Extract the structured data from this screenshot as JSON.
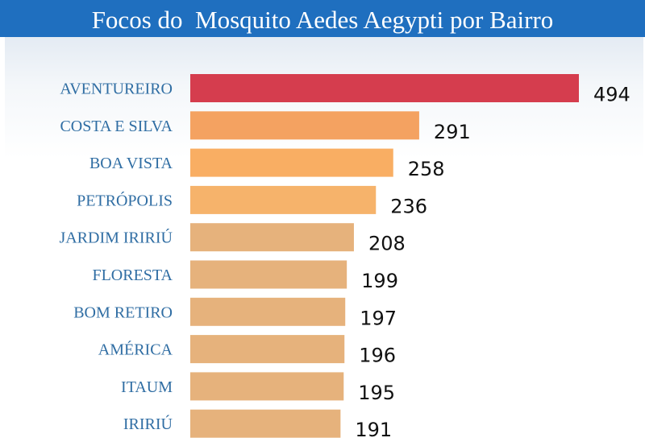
{
  "chart_data": {
    "type": "bar",
    "orientation": "horizontal",
    "title": "Focos do  Mosquito Aedes Aegypti por Bairro",
    "categories": [
      "AVENTUREIRO",
      "COSTA E SILVA",
      "BOA VISTA",
      "PETRÓPOLIS",
      "JARDIM IRIRIÚ",
      "FLORESTA",
      "BOM RETIRO",
      "AMÉRICA",
      "ITAUM",
      "IRIRIÚ"
    ],
    "values": [
      494,
      291,
      258,
      236,
      208,
      199,
      197,
      196,
      195,
      191
    ],
    "bar_colors": [
      "#d53d4e",
      "#f4a261",
      "#f9ae63",
      "#f6b36b",
      "#e6b27c",
      "#e6b27c",
      "#e6b27c",
      "#e6b27c",
      "#e6b27c",
      "#e6b27c"
    ],
    "xlim": [
      0,
      494
    ],
    "grid": false,
    "legend": "none"
  },
  "colors": {
    "title_bar": "#1f6fbf",
    "category_text": "#2f6da3",
    "value_text": "#111111"
  }
}
